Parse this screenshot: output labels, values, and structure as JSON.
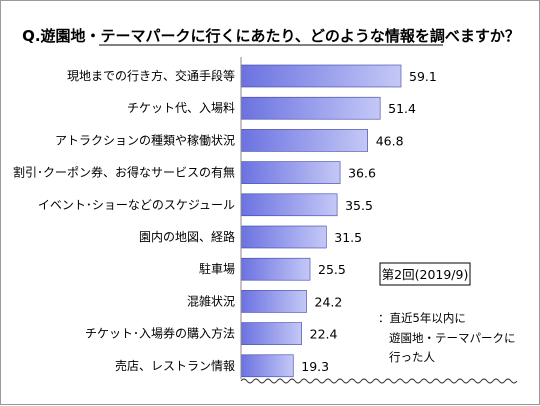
{
  "chart_data": {
    "type": "bar",
    "orientation": "horizontal",
    "title": "Q.遊園地・テーマパークに行くにあたり、どのような情報を調べますか？",
    "categories": [
      "現地までの行き方、交通手段等",
      "チケット代、入場料",
      "アトラクションの種類や稼働状況",
      "割引･クーポン券、お得なサービスの有無",
      "イベント･ショーなどのスケジュール",
      "園内の地図、経路",
      "駐車場",
      "混雑状況",
      "チケット･入場券の購入方法",
      "売店、レストラン情報"
    ],
    "values": [
      59.1,
      51.4,
      46.8,
      36.6,
      35.5,
      31.5,
      25.5,
      24.2,
      22.4,
      19.3
    ],
    "value_labels": [
      "59.1",
      "51.4",
      "46.8",
      "36.6",
      "35.5",
      "31.5",
      "25.5",
      "24.2",
      "22.4",
      "19.3"
    ],
    "xlim": [
      0,
      100
    ],
    "grid": false,
    "axis_break": true,
    "bar_color": "#6b72e0",
    "bar_color_light": "#c4c8f6"
  },
  "legend": {
    "survey_label": "第2回(2019/9)"
  },
  "note": {
    "lines": [
      "：直近5年以内に",
      "遊園地・テーマパークに",
      "行った人"
    ]
  }
}
